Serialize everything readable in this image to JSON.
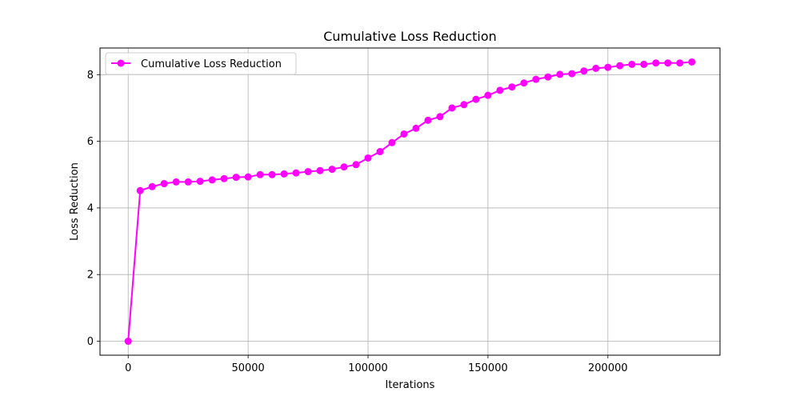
{
  "chart_data": {
    "type": "line",
    "title": "Cumulative Loss Reduction",
    "xlabel": "Iterations",
    "ylabel": "Loss Reduction",
    "xlim": [
      -11750,
      246750
    ],
    "ylim": [
      -0.42,
      8.8
    ],
    "xticks": [
      0,
      50000,
      100000,
      150000,
      200000
    ],
    "yticks": [
      0,
      2,
      4,
      6,
      8
    ],
    "grid": true,
    "legend_position": "top-left",
    "series": [
      {
        "name": "Cumulative Loss Reduction",
        "color": "#ff00ff",
        "marker": "circle",
        "x": [
          0,
          5000,
          10000,
          15000,
          20000,
          25000,
          30000,
          35000,
          40000,
          45000,
          50000,
          55000,
          60000,
          65000,
          70000,
          75000,
          80000,
          85000,
          90000,
          95000,
          100000,
          105000,
          110000,
          115000,
          120000,
          125000,
          130000,
          135000,
          140000,
          145000,
          150000,
          155000,
          160000,
          165000,
          170000,
          175000,
          180000,
          185000,
          190000,
          195000,
          200000,
          205000,
          210000,
          215000,
          220000,
          225000,
          230000,
          235000
        ],
        "y": [
          0.0,
          4.52,
          4.64,
          4.73,
          4.78,
          4.78,
          4.8,
          4.84,
          4.88,
          4.92,
          4.93,
          5.0,
          5.0,
          5.02,
          5.05,
          5.09,
          5.12,
          5.16,
          5.23,
          5.3,
          5.5,
          5.69,
          5.96,
          6.22,
          6.39,
          6.63,
          6.74,
          7.0,
          7.1,
          7.26,
          7.38,
          7.53,
          7.63,
          7.75,
          7.86,
          7.93,
          8.01,
          8.03,
          8.11,
          8.19,
          8.22,
          8.27,
          8.31,
          8.31,
          8.35,
          8.35,
          8.35,
          8.38
        ]
      }
    ]
  }
}
